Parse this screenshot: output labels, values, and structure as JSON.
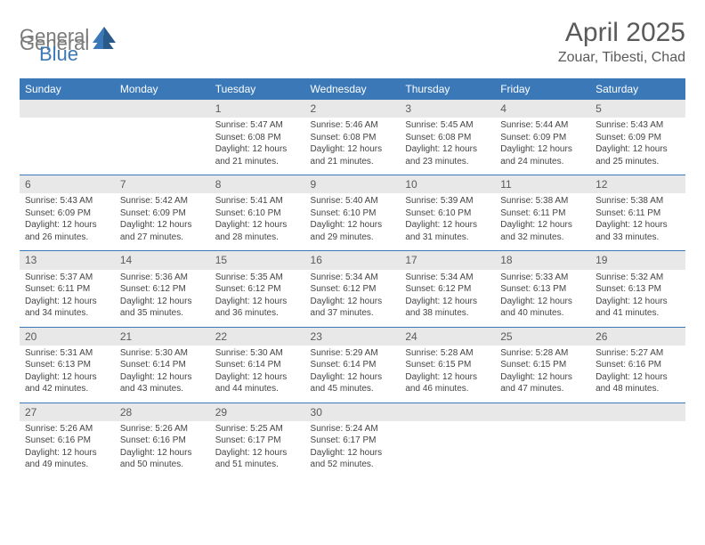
{
  "logo": {
    "part1": "General",
    "part2": "Blue"
  },
  "title": "April 2025",
  "location": "Zouar, Tibesti, Chad",
  "day_headers": [
    "Sunday",
    "Monday",
    "Tuesday",
    "Wednesday",
    "Thursday",
    "Friday",
    "Saturday"
  ],
  "colors": {
    "header_bg": "#3a78b8",
    "header_text": "#ffffff",
    "daynum_bg": "#e8e8e8",
    "border": "#3a78b8",
    "logo_gray": "#7a7a7a",
    "logo_blue": "#3a78b8",
    "text": "#444444"
  },
  "weeks": [
    [
      null,
      null,
      {
        "n": "1",
        "sr": "Sunrise: 5:47 AM",
        "ss": "Sunset: 6:08 PM",
        "dl": "Daylight: 12 hours and 21 minutes."
      },
      {
        "n": "2",
        "sr": "Sunrise: 5:46 AM",
        "ss": "Sunset: 6:08 PM",
        "dl": "Daylight: 12 hours and 21 minutes."
      },
      {
        "n": "3",
        "sr": "Sunrise: 5:45 AM",
        "ss": "Sunset: 6:08 PM",
        "dl": "Daylight: 12 hours and 23 minutes."
      },
      {
        "n": "4",
        "sr": "Sunrise: 5:44 AM",
        "ss": "Sunset: 6:09 PM",
        "dl": "Daylight: 12 hours and 24 minutes."
      },
      {
        "n": "5",
        "sr": "Sunrise: 5:43 AM",
        "ss": "Sunset: 6:09 PM",
        "dl": "Daylight: 12 hours and 25 minutes."
      }
    ],
    [
      {
        "n": "6",
        "sr": "Sunrise: 5:43 AM",
        "ss": "Sunset: 6:09 PM",
        "dl": "Daylight: 12 hours and 26 minutes."
      },
      {
        "n": "7",
        "sr": "Sunrise: 5:42 AM",
        "ss": "Sunset: 6:09 PM",
        "dl": "Daylight: 12 hours and 27 minutes."
      },
      {
        "n": "8",
        "sr": "Sunrise: 5:41 AM",
        "ss": "Sunset: 6:10 PM",
        "dl": "Daylight: 12 hours and 28 minutes."
      },
      {
        "n": "9",
        "sr": "Sunrise: 5:40 AM",
        "ss": "Sunset: 6:10 PM",
        "dl": "Daylight: 12 hours and 29 minutes."
      },
      {
        "n": "10",
        "sr": "Sunrise: 5:39 AM",
        "ss": "Sunset: 6:10 PM",
        "dl": "Daylight: 12 hours and 31 minutes."
      },
      {
        "n": "11",
        "sr": "Sunrise: 5:38 AM",
        "ss": "Sunset: 6:11 PM",
        "dl": "Daylight: 12 hours and 32 minutes."
      },
      {
        "n": "12",
        "sr": "Sunrise: 5:38 AM",
        "ss": "Sunset: 6:11 PM",
        "dl": "Daylight: 12 hours and 33 minutes."
      }
    ],
    [
      {
        "n": "13",
        "sr": "Sunrise: 5:37 AM",
        "ss": "Sunset: 6:11 PM",
        "dl": "Daylight: 12 hours and 34 minutes."
      },
      {
        "n": "14",
        "sr": "Sunrise: 5:36 AM",
        "ss": "Sunset: 6:12 PM",
        "dl": "Daylight: 12 hours and 35 minutes."
      },
      {
        "n": "15",
        "sr": "Sunrise: 5:35 AM",
        "ss": "Sunset: 6:12 PM",
        "dl": "Daylight: 12 hours and 36 minutes."
      },
      {
        "n": "16",
        "sr": "Sunrise: 5:34 AM",
        "ss": "Sunset: 6:12 PM",
        "dl": "Daylight: 12 hours and 37 minutes."
      },
      {
        "n": "17",
        "sr": "Sunrise: 5:34 AM",
        "ss": "Sunset: 6:12 PM",
        "dl": "Daylight: 12 hours and 38 minutes."
      },
      {
        "n": "18",
        "sr": "Sunrise: 5:33 AM",
        "ss": "Sunset: 6:13 PM",
        "dl": "Daylight: 12 hours and 40 minutes."
      },
      {
        "n": "19",
        "sr": "Sunrise: 5:32 AM",
        "ss": "Sunset: 6:13 PM",
        "dl": "Daylight: 12 hours and 41 minutes."
      }
    ],
    [
      {
        "n": "20",
        "sr": "Sunrise: 5:31 AM",
        "ss": "Sunset: 6:13 PM",
        "dl": "Daylight: 12 hours and 42 minutes."
      },
      {
        "n": "21",
        "sr": "Sunrise: 5:30 AM",
        "ss": "Sunset: 6:14 PM",
        "dl": "Daylight: 12 hours and 43 minutes."
      },
      {
        "n": "22",
        "sr": "Sunrise: 5:30 AM",
        "ss": "Sunset: 6:14 PM",
        "dl": "Daylight: 12 hours and 44 minutes."
      },
      {
        "n": "23",
        "sr": "Sunrise: 5:29 AM",
        "ss": "Sunset: 6:14 PM",
        "dl": "Daylight: 12 hours and 45 minutes."
      },
      {
        "n": "24",
        "sr": "Sunrise: 5:28 AM",
        "ss": "Sunset: 6:15 PM",
        "dl": "Daylight: 12 hours and 46 minutes."
      },
      {
        "n": "25",
        "sr": "Sunrise: 5:28 AM",
        "ss": "Sunset: 6:15 PM",
        "dl": "Daylight: 12 hours and 47 minutes."
      },
      {
        "n": "26",
        "sr": "Sunrise: 5:27 AM",
        "ss": "Sunset: 6:16 PM",
        "dl": "Daylight: 12 hours and 48 minutes."
      }
    ],
    [
      {
        "n": "27",
        "sr": "Sunrise: 5:26 AM",
        "ss": "Sunset: 6:16 PM",
        "dl": "Daylight: 12 hours and 49 minutes."
      },
      {
        "n": "28",
        "sr": "Sunrise: 5:26 AM",
        "ss": "Sunset: 6:16 PM",
        "dl": "Daylight: 12 hours and 50 minutes."
      },
      {
        "n": "29",
        "sr": "Sunrise: 5:25 AM",
        "ss": "Sunset: 6:17 PM",
        "dl": "Daylight: 12 hours and 51 minutes."
      },
      {
        "n": "30",
        "sr": "Sunrise: 5:24 AM",
        "ss": "Sunset: 6:17 PM",
        "dl": "Daylight: 12 hours and 52 minutes."
      },
      null,
      null,
      null
    ]
  ]
}
